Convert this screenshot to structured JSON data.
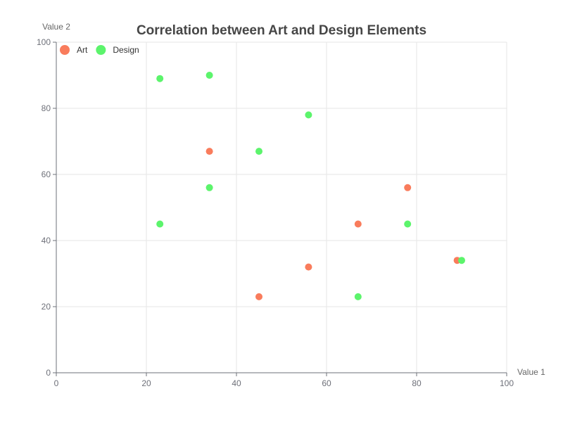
{
  "chart_data": {
    "type": "scatter",
    "title": "Correlation between Art and Design Elements",
    "xlabel": "Value 1",
    "ylabel": "Value 2",
    "xlim": [
      0,
      100
    ],
    "ylim": [
      0,
      100
    ],
    "xticks": [
      0,
      20,
      40,
      60,
      80,
      100
    ],
    "yticks": [
      0,
      20,
      40,
      60,
      80,
      100
    ],
    "grid": true,
    "legend_position": "top-left",
    "series": [
      {
        "name": "Art",
        "color": "#f97c5c",
        "points": [
          {
            "x": 34,
            "y": 67
          },
          {
            "x": 78,
            "y": 56
          },
          {
            "x": 67,
            "y": 45
          },
          {
            "x": 89,
            "y": 34
          },
          {
            "x": 56,
            "y": 32
          },
          {
            "x": 45,
            "y": 23
          }
        ]
      },
      {
        "name": "Design",
        "color": "#5cf46c",
        "points": [
          {
            "x": 23,
            "y": 89
          },
          {
            "x": 34,
            "y": 90
          },
          {
            "x": 56,
            "y": 78
          },
          {
            "x": 45,
            "y": 67
          },
          {
            "x": 34,
            "y": 56
          },
          {
            "x": 23,
            "y": 45
          },
          {
            "x": 78,
            "y": 45
          },
          {
            "x": 90,
            "y": 34
          },
          {
            "x": 67,
            "y": 23
          }
        ]
      }
    ]
  }
}
